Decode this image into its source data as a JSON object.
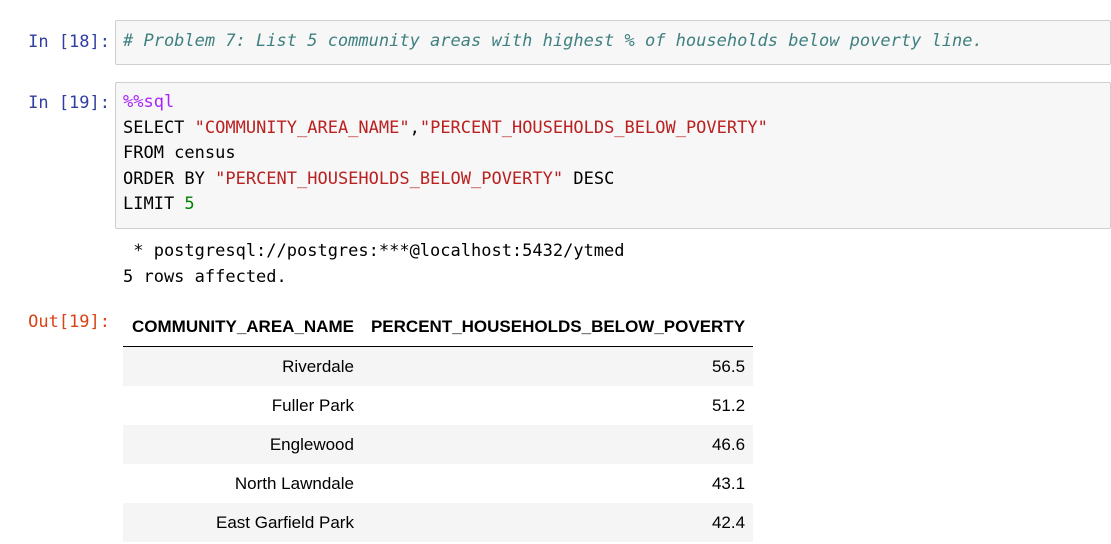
{
  "cells": {
    "cell18": {
      "prompt": "In [18]:",
      "comment": "# Problem 7: List 5 community areas with highest % of households below poverty line."
    },
    "cell19": {
      "prompt": "In [19]:",
      "magic": "%%sql",
      "line1_kw": "SELECT ",
      "line1_col1": "\"COMMUNITY_AREA_NAME\"",
      "line1_sep": ",",
      "line1_col2": "\"PERCENT_HOUSEHOLDS_BELOW_POVERTY\"",
      "line2": "FROM census",
      "line3_kw": "ORDER BY ",
      "line3_col": "\"PERCENT_HOUSEHOLDS_BELOW_POVERTY\"",
      "line3_tail": " DESC",
      "line4_kw": "LIMIT ",
      "line4_num": "5"
    },
    "stdout": {
      "connection": " * postgresql://postgres:***@localhost:5432/ytmed",
      "rows_affected": "5 rows affected."
    },
    "output": {
      "prompt": "Out[19]:",
      "headers": [
        "COMMUNITY_AREA_NAME",
        "PERCENT_HOUSEHOLDS_BELOW_POVERTY"
      ],
      "rows": [
        [
          "Riverdale",
          "56.5"
        ],
        [
          "Fuller Park",
          "51.2"
        ],
        [
          "Englewood",
          "46.6"
        ],
        [
          "North Lawndale",
          "43.1"
        ],
        [
          "East Garfield Park",
          "42.4"
        ]
      ]
    }
  },
  "colors": {
    "prompt_in": "#303f9f",
    "prompt_out": "#d84315",
    "comment": "#408080",
    "magic": "#aa22ff",
    "string": "#ba2121",
    "number": "#008000"
  }
}
